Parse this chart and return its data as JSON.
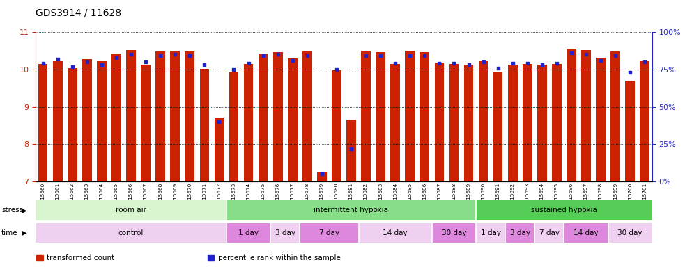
{
  "title": "GDS3914 / 11628",
  "samples": [
    "GSM215660",
    "GSM215661",
    "GSM215662",
    "GSM215663",
    "GSM215664",
    "GSM215665",
    "GSM215666",
    "GSM215667",
    "GSM215668",
    "GSM215669",
    "GSM215670",
    "GSM215671",
    "GSM215672",
    "GSM215673",
    "GSM215674",
    "GSM215675",
    "GSM215676",
    "GSM215677",
    "GSM215678",
    "GSM215679",
    "GSM215680",
    "GSM215681",
    "GSM215682",
    "GSM215683",
    "GSM215684",
    "GSM215685",
    "GSM215686",
    "GSM215687",
    "GSM215688",
    "GSM215689",
    "GSM215690",
    "GSM215691",
    "GSM215692",
    "GSM215693",
    "GSM215694",
    "GSM215695",
    "GSM215696",
    "GSM215697",
    "GSM215698",
    "GSM215699",
    "GSM215700",
    "GSM215701"
  ],
  "bar_values": [
    10.15,
    10.22,
    10.03,
    10.27,
    10.22,
    10.42,
    10.52,
    10.12,
    10.48,
    10.5,
    10.48,
    10.01,
    8.72,
    9.95,
    10.14,
    10.43,
    10.47,
    10.3,
    10.48,
    7.25,
    9.97,
    8.65,
    10.5,
    10.47,
    10.15,
    10.5,
    10.46,
    10.18,
    10.15,
    10.12,
    10.22,
    9.92,
    10.12,
    10.14,
    10.12,
    10.14,
    10.56,
    10.52,
    10.32,
    10.48,
    9.7,
    10.22
  ],
  "dot_values": [
    79,
    82,
    77,
    80,
    78,
    83,
    85,
    80,
    84,
    85,
    84,
    78,
    40,
    75,
    79,
    84,
    85,
    81,
    84,
    5,
    75,
    22,
    84,
    84,
    79,
    84,
    84,
    79,
    79,
    78,
    80,
    76,
    79,
    79,
    78,
    79,
    86,
    85,
    81,
    84,
    73,
    80
  ],
  "ylim_left": [
    7,
    11
  ],
  "ylim_right": [
    0,
    100
  ],
  "yticks_left": [
    7,
    8,
    9,
    10,
    11
  ],
  "yticks_right": [
    0,
    25,
    50,
    75,
    100
  ],
  "ytick_labels_right": [
    "0%",
    "25%",
    "50%",
    "75%",
    "100%"
  ],
  "bar_color": "#cc2200",
  "dot_color": "#2222cc",
  "bar_bottom": 7,
  "stress_groups": [
    {
      "label": "room air",
      "start": 0,
      "end": 13,
      "color": "#d8f5d0"
    },
    {
      "label": "intermittent hypoxia",
      "start": 13,
      "end": 30,
      "color": "#88dd88"
    },
    {
      "label": "sustained hypoxia",
      "start": 30,
      "end": 42,
      "color": "#55cc55"
    }
  ],
  "time_groups": [
    {
      "label": "control",
      "start": 0,
      "end": 13,
      "color": "#f0d0f0"
    },
    {
      "label": "1 day",
      "start": 13,
      "end": 16,
      "color": "#dd88dd"
    },
    {
      "label": "3 day",
      "start": 16,
      "end": 18,
      "color": "#f0d0f0"
    },
    {
      "label": "7 day",
      "start": 18,
      "end": 22,
      "color": "#dd88dd"
    },
    {
      "label": "14 day",
      "start": 22,
      "end": 27,
      "color": "#f0d0f0"
    },
    {
      "label": "30 day",
      "start": 27,
      "end": 30,
      "color": "#dd88dd"
    },
    {
      "label": "1 day",
      "start": 30,
      "end": 32,
      "color": "#f0d0f0"
    },
    {
      "label": "3 day",
      "start": 32,
      "end": 34,
      "color": "#dd88dd"
    },
    {
      "label": "7 day",
      "start": 34,
      "end": 36,
      "color": "#f0d0f0"
    },
    {
      "label": "14 day",
      "start": 36,
      "end": 39,
      "color": "#dd88dd"
    },
    {
      "label": "30 day",
      "start": 39,
      "end": 42,
      "color": "#f0d0f0"
    }
  ],
  "legend_items": [
    {
      "label": "transformed count",
      "color": "#cc2200"
    },
    {
      "label": "percentile rank within the sample",
      "color": "#2222cc"
    }
  ],
  "background_color": "#ffffff",
  "axis_color_left": "#cc2200",
  "axis_color_right": "#2222cc",
  "stress_label": "stress",
  "time_label": "time",
  "fig_width": 9.83,
  "fig_height": 3.84,
  "dpi": 100
}
